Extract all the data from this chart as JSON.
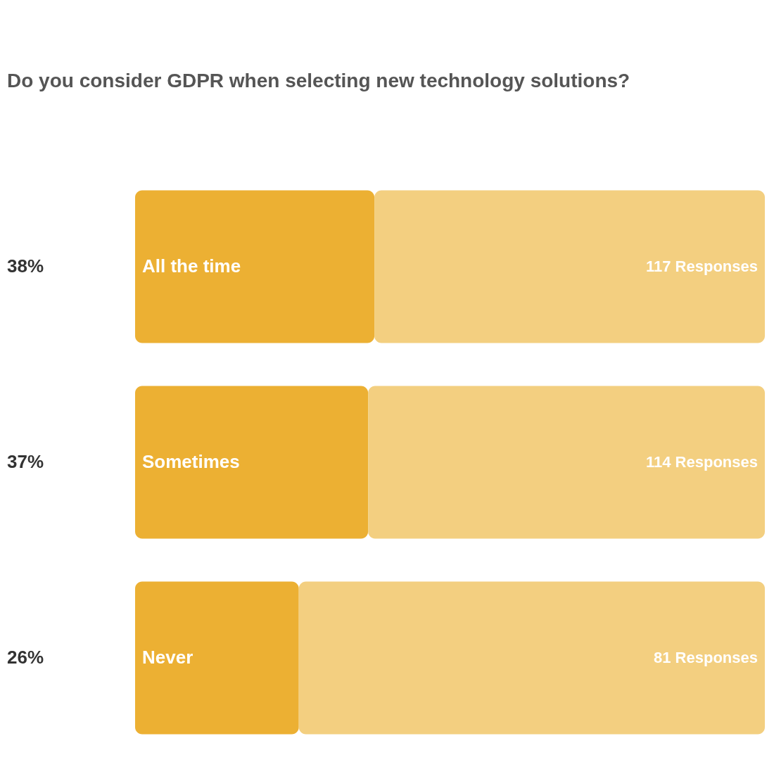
{
  "chart_data": {
    "type": "bar",
    "orientation": "horizontal",
    "stacked": true,
    "title": "Do you consider GDPR when selecting new technology solutions?",
    "categories": [
      "All the time",
      "Sometimes",
      "Never"
    ],
    "series": [
      {
        "color": "#ecb033",
        "values": [
          38,
          37,
          26
        ],
        "value_labels": [
          "38%",
          "37%",
          "26%"
        ]
      },
      {
        "color": "#f3cf80",
        "values": [
          62,
          63,
          74
        ]
      }
    ],
    "xlim": [
      0,
      100
    ],
    "tick_labels": false,
    "grid": false,
    "legend": false,
    "annotations": [
      "117 Responses",
      "114 Responses",
      "81 Responses"
    ]
  }
}
